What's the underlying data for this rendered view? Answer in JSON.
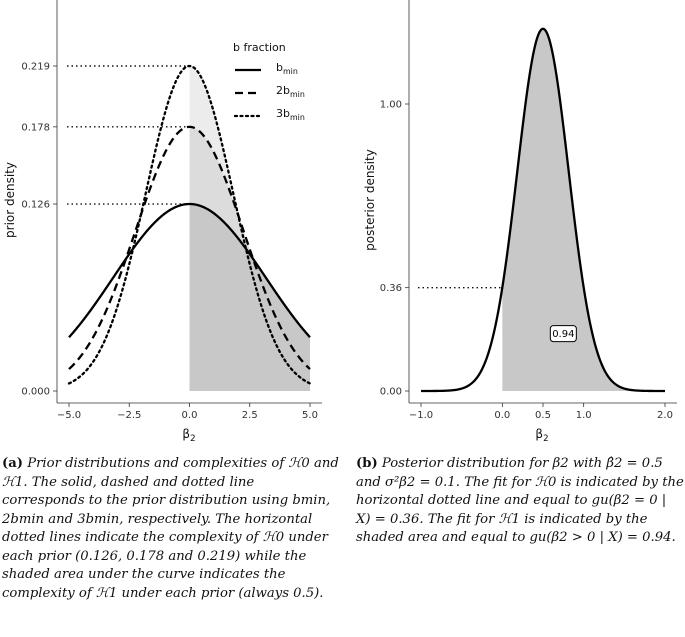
{
  "chart_data": [
    {
      "type": "line",
      "xlabel": "β2",
      "ylabel": "prior density",
      "xlim": [
        -5,
        5
      ],
      "ylim": [
        0,
        0.24
      ],
      "xticks": [
        "−5.0",
        "−2.5",
        "0.0",
        "2.5",
        "5.0"
      ],
      "xtick_values": [
        -5,
        -2.5,
        0,
        2.5,
        5
      ],
      "yticks": [
        "0.000",
        "0.126",
        "0.178",
        "0.219"
      ],
      "ytick_values": [
        0,
        0.126,
        0.178,
        0.219
      ],
      "legend_title": "b fraction",
      "legend_position": "top-right",
      "series": [
        {
          "name": "bmin",
          "name_main": "b",
          "name_sub": "min",
          "dist": "normal",
          "mean": 0,
          "sd": 3.166,
          "peak": 0.126,
          "style": "solid"
        },
        {
          "name": "2bmin",
          "name_main": "2b",
          "name_sub": "min",
          "dist": "normal",
          "mean": 0,
          "sd": 2.241,
          "peak": 0.178,
          "style": "dashed"
        },
        {
          "name": "3bmin",
          "name_main": "3b",
          "name_sub": "min",
          "dist": "normal",
          "mean": 0,
          "sd": 1.822,
          "peak": 0.219,
          "style": "dotted"
        }
      ],
      "complexity_H0": [
        0.126,
        0.178,
        0.219
      ],
      "complexity_H1": 0.5,
      "shaded_region": [
        0,
        5
      ],
      "grid": false
    },
    {
      "type": "area",
      "xlabel": "β2",
      "ylabel": "posterior density",
      "xlim": [
        -1.0,
        2.0
      ],
      "ylim": [
        0,
        1.3
      ],
      "xticks": [
        "−1.0",
        "0.0",
        "0.5",
        "1.0",
        "2.0"
      ],
      "xtick_values": [
        -1.0,
        0.0,
        0.5,
        1.0,
        2.0
      ],
      "yticks": [
        "0.00",
        "0.36",
        "1.00"
      ],
      "ytick_values": [
        0,
        0.36,
        1.0
      ],
      "series": [
        {
          "dist": "normal",
          "mean": 0.5,
          "sd": 0.316,
          "peak": 1.262
        }
      ],
      "fit_H0": 0.36,
      "fit_H1": 0.94,
      "annotation": "0.94",
      "shaded_region": [
        0,
        2.0
      ],
      "grid": false
    }
  ],
  "captions": {
    "a_label": "(a)",
    "a_text": "Prior distributions and complexities of ℋ0 and ℋ1. The solid, dashed and dotted line corresponds to the prior distribution using bmin, 2bmin and 3bmin, respectively. The horizontal dotted lines indicate the complexity of ℋ0 under each prior (0.126, 0.178 and 0.219) while the shaded area under the curve indicates the complexity of ℋ1 under each prior (always 0.5).",
    "b_label": "(b)",
    "b_text": "Posterior distribution for β2 with β̂2 = 0.5 and σ²β2 = 0.1. The fit for ℋ0 is indicated by the horizontal dotted line and equal to gu(β2 = 0 | X) = 0.36. The fit for ℋ1 is indicated by the shaded area and equal to gu(β2 > 0 | X) = 0.94."
  }
}
